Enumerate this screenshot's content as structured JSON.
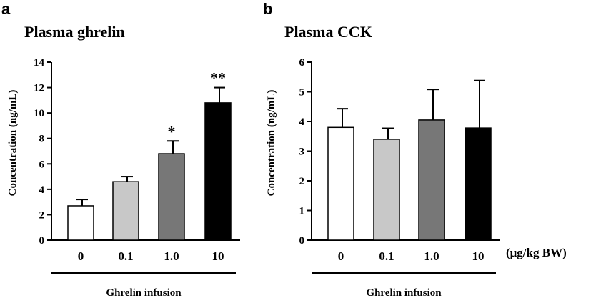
{
  "chart_data": [
    {
      "panel": "a",
      "type": "bar",
      "title": "Plasma ghrelin",
      "ylabel": "Concentration (ng/mL)",
      "xlabel": "Ghrelin infusion",
      "ylim": [
        0,
        14
      ],
      "yticks": [
        "0",
        "2",
        "4",
        "6",
        "8",
        "10",
        "12",
        "14"
      ],
      "categories": [
        "0",
        "0.1",
        "1.0",
        "10"
      ],
      "values": [
        2.7,
        4.6,
        6.8,
        10.8
      ],
      "errors": [
        0.5,
        0.4,
        1.0,
        1.2
      ],
      "significance": [
        "",
        "",
        "*",
        "**"
      ],
      "bar_colors": [
        "#ffffff",
        "#c8c8c8",
        "#777777",
        "#000000"
      ],
      "grid": false
    },
    {
      "panel": "b",
      "type": "bar",
      "title": "Plasma CCK",
      "ylabel": "Concentration (ng/mL)",
      "xlabel": "Ghrelin infusion",
      "unit_label": "(μg/kg BW)",
      "ylim": [
        0,
        6
      ],
      "yticks": [
        "0",
        "1",
        "2",
        "3",
        "4",
        "5",
        "6"
      ],
      "categories": [
        "0",
        "0.1",
        "1.0",
        "10"
      ],
      "values": [
        3.8,
        3.4,
        4.05,
        3.78
      ],
      "errors": [
        0.63,
        0.37,
        1.03,
        1.6
      ],
      "significance": [
        "",
        "",
        "",
        ""
      ],
      "bar_colors": [
        "#ffffff",
        "#c8c8c8",
        "#777777",
        "#000000"
      ],
      "grid": false
    }
  ]
}
